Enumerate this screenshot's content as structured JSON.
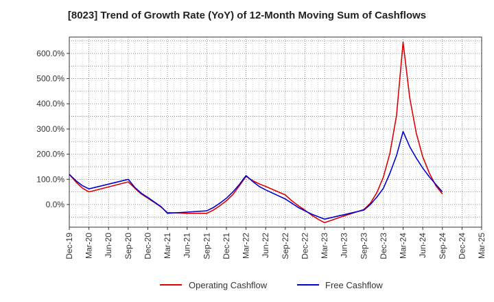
{
  "chart_data": {
    "type": "line",
    "title": "[8023]  Trend of Growth Rate (YoY) of 12-Month Moving Sum of Cashflows",
    "xlabel": "",
    "ylabel": "",
    "x_ticks": [
      "Dec-19",
      "Mar-20",
      "Jun-20",
      "Sep-20",
      "Dec-20",
      "Mar-21",
      "Jun-21",
      "Sep-21",
      "Dec-21",
      "Mar-22",
      "Jun-22",
      "Sep-22",
      "Dec-22",
      "Mar-23",
      "Jun-23",
      "Sep-23",
      "Dec-23",
      "Mar-24",
      "Jun-24",
      "Sep-24",
      "Dec-24",
      "Mar-25"
    ],
    "y_ticks": [
      "0.0%",
      "100.0%",
      "200.0%",
      "300.0%",
      "400.0%",
      "500.0%",
      "600.0%"
    ],
    "y_tick_values": [
      0,
      100,
      200,
      300,
      400,
      500,
      600
    ],
    "ylim": [
      -90,
      665
    ],
    "grid": true,
    "legend_position": "bottom",
    "series": [
      {
        "name": "Operating Cashflow",
        "color": "#dd0000",
        "x": [
          "Dec-19",
          "Jan-20",
          "Feb-20",
          "Mar-20",
          "Sep-20",
          "Oct-20",
          "Nov-20",
          "Dec-20",
          "Jan-21",
          "Feb-21",
          "Mar-21",
          "Jun-21",
          "Sep-21",
          "Oct-21",
          "Nov-21",
          "Dec-21",
          "Jan-22",
          "Feb-22",
          "Mar-22",
          "Apr-22",
          "May-22",
          "Jun-22",
          "Sep-22",
          "Oct-22",
          "Nov-22",
          "Dec-22",
          "Jan-23",
          "Feb-23",
          "Mar-23",
          "Jun-23",
          "Sep-23",
          "Oct-23",
          "Nov-23",
          "Dec-23",
          "Jan-24",
          "Feb-24",
          "Mar-24",
          "Apr-24",
          "May-24",
          "Jun-24",
          "Jul-24",
          "Aug-24",
          "Sep-24"
        ],
        "values": [
          120,
          90,
          65,
          50,
          90,
          65,
          42,
          25,
          8,
          -10,
          -32,
          -35,
          -35,
          -22,
          -5,
          15,
          40,
          75,
          112,
          95,
          82,
          72,
          38,
          15,
          -5,
          -22,
          -42,
          -58,
          -72,
          -45,
          -20,
          5,
          48,
          110,
          205,
          355,
          645,
          425,
          285,
          190,
          125,
          75,
          42
        ]
      },
      {
        "name": "Free Cashflow",
        "color": "#0000cc",
        "x": [
          "Dec-19",
          "Jan-20",
          "Feb-20",
          "Mar-20",
          "Sep-20",
          "Oct-20",
          "Nov-20",
          "Dec-20",
          "Jan-21",
          "Feb-21",
          "Mar-21",
          "Jun-21",
          "Sep-21",
          "Oct-21",
          "Nov-21",
          "Dec-21",
          "Jan-22",
          "Feb-22",
          "Mar-22",
          "Apr-22",
          "May-22",
          "Jun-22",
          "Sep-22",
          "Oct-22",
          "Nov-22",
          "Dec-22",
          "Jan-23",
          "Feb-23",
          "Mar-23",
          "Jun-23",
          "Sep-23",
          "Oct-23",
          "Nov-23",
          "Dec-23",
          "Jan-24",
          "Feb-24",
          "Mar-24",
          "Apr-24",
          "May-24",
          "Jun-24",
          "Jul-24",
          "Aug-24",
          "Sep-24"
        ],
        "values": [
          120,
          95,
          75,
          62,
          100,
          68,
          45,
          28,
          10,
          -8,
          -35,
          -30,
          -25,
          -12,
          5,
          25,
          50,
          80,
          115,
          92,
          72,
          58,
          22,
          5,
          -12,
          -25,
          -38,
          -48,
          -58,
          -40,
          -22,
          0,
          30,
          65,
          125,
          195,
          290,
          230,
          185,
          145,
          110,
          80,
          50
        ]
      }
    ]
  }
}
